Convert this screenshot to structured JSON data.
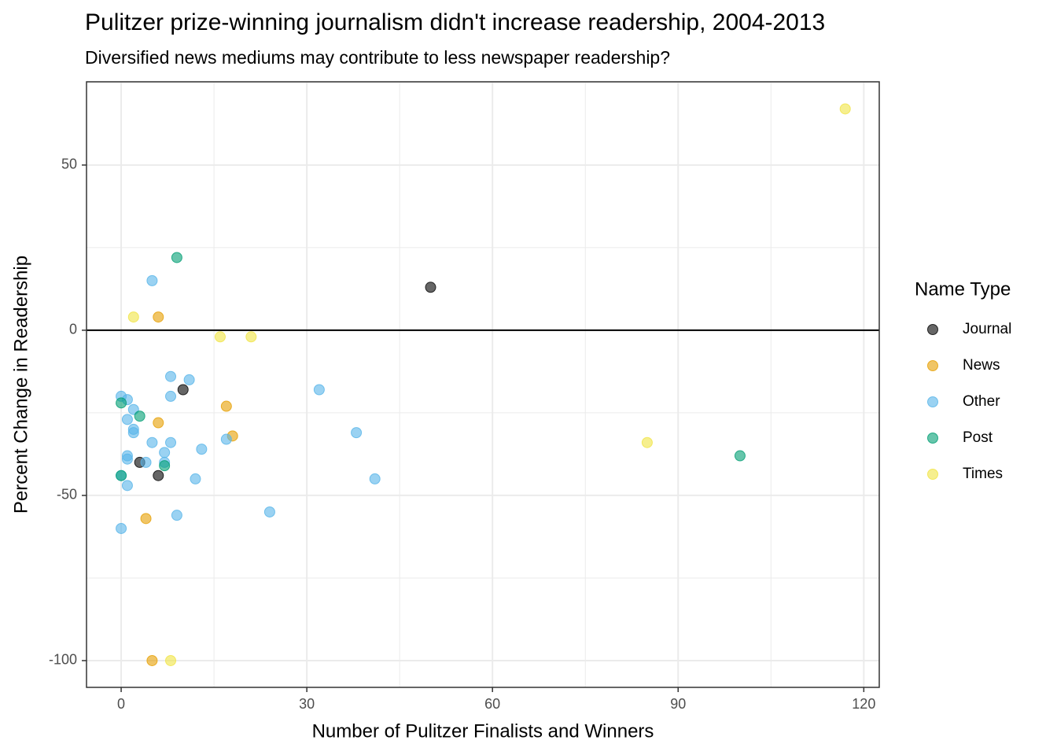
{
  "chart_data": {
    "type": "scatter",
    "title": "Pulitzer prize-winning journalism didn't increase readership, 2004-2013",
    "subtitle": "Diversified news mediums may contribute to less newspaper readership?",
    "x_label": "Number of Pulitzer Finalists and Winners",
    "y_label": "Percent Change in Readership",
    "legend_title": "Name Type",
    "legend_position": "right",
    "grid": true,
    "hline": 0,
    "xlim": [
      -5.6,
      122.5
    ],
    "xticks": [
      0,
      30,
      60,
      90,
      120
    ],
    "ylim": [
      -108.1,
      75.2
    ],
    "yticks": [
      -100,
      -50,
      0,
      50
    ],
    "series": [
      {
        "name": "Journal",
        "color": "#000000",
        "x": [
          50,
          10,
          3,
          6
        ],
        "values": [
          13,
          -18,
          -40,
          -44
        ]
      },
      {
        "name": "News",
        "color": "#E69F00",
        "x": [
          6,
          17,
          18,
          6,
          4,
          5
        ],
        "values": [
          4,
          -23,
          -32,
          -28,
          -57,
          -100
        ]
      },
      {
        "name": "Other",
        "color": "#56B4E9",
        "x": [
          5,
          8,
          11,
          8,
          0,
          1,
          2,
          1,
          2,
          2,
          5,
          8,
          13,
          7,
          1,
          1,
          4,
          7,
          12,
          1,
          0,
          9,
          0,
          17,
          24,
          32,
          38,
          41
        ],
        "values": [
          15,
          -14,
          -15,
          -20,
          -20,
          -21,
          -24,
          -27,
          -30,
          -31,
          -34,
          -34,
          -36,
          -37,
          -38,
          -39,
          -40,
          -40,
          -45,
          -47,
          -44,
          -56,
          -60,
          -33,
          -55,
          -18,
          -31,
          -45
        ]
      },
      {
        "name": "Post",
        "color": "#009E73",
        "x": [
          9,
          0,
          3,
          7,
          0,
          100
        ],
        "values": [
          22,
          -22,
          -26,
          -41,
          -44,
          -38
        ]
      },
      {
        "name": "Times",
        "color": "#F0E442",
        "x": [
          2,
          16,
          21,
          8,
          85,
          117
        ],
        "values": [
          4,
          -2,
          -2,
          -100,
          -34,
          67
        ]
      }
    ]
  }
}
